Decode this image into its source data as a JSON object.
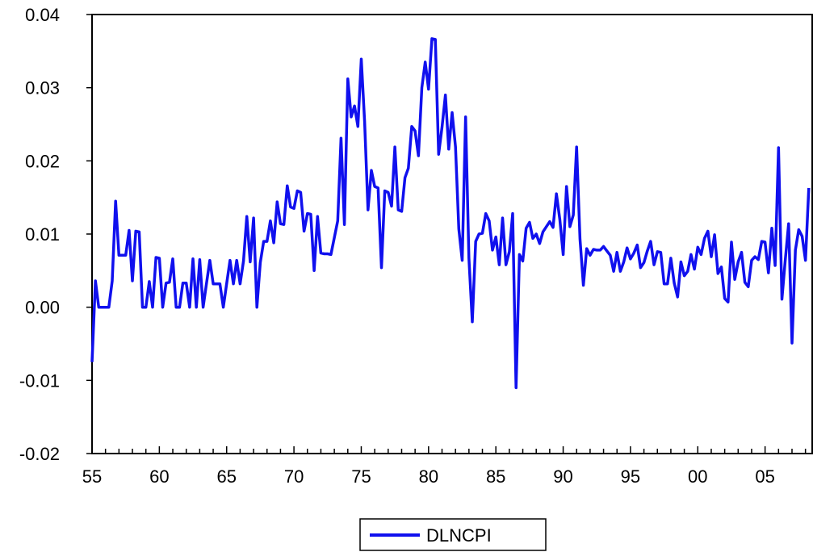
{
  "chart_data": {
    "type": "line",
    "title": "",
    "xlabel": "",
    "ylabel": "",
    "x_start": 1955,
    "x_end": 2008.5,
    "ylim": [
      -0.02,
      0.04
    ],
    "y_ticks": [
      {
        "value": 0.04,
        "label": "0.04"
      },
      {
        "value": 0.03,
        "label": "0.03"
      },
      {
        "value": 0.02,
        "label": "0.02"
      },
      {
        "value": 0.01,
        "label": "0.01"
      },
      {
        "value": 0.0,
        "label": "0.00"
      },
      {
        "value": -0.01,
        "label": "-0.01"
      },
      {
        "value": -0.02,
        "label": "-0.02"
      }
    ],
    "x_ticks": [
      {
        "value": 1955,
        "label": "55"
      },
      {
        "value": 1960,
        "label": "60"
      },
      {
        "value": 1965,
        "label": "65"
      },
      {
        "value": 1970,
        "label": "70"
      },
      {
        "value": 1975,
        "label": "75"
      },
      {
        "value": 1980,
        "label": "80"
      },
      {
        "value": 1985,
        "label": "85"
      },
      {
        "value": 1990,
        "label": "90"
      },
      {
        "value": 1995,
        "label": "95"
      },
      {
        "value": 2000,
        "label": "00"
      },
      {
        "value": 2005,
        "label": "05"
      }
    ],
    "legend": {
      "placement": "bottom-center",
      "entries": [
        "DLNCPI"
      ]
    },
    "grid": false,
    "series": [
      {
        "name": "DLNCPI",
        "color": "#1010ee",
        "points": [
          [
            1955.0,
            -0.0075
          ],
          [
            1955.25,
            0.0036
          ],
          [
            1955.5,
            0.0
          ],
          [
            1955.75,
            0.0
          ],
          [
            1956.0,
            0.0
          ],
          [
            1956.25,
            0.0
          ],
          [
            1956.5,
            0.0036
          ],
          [
            1956.75,
            0.0145
          ],
          [
            1957.0,
            0.0071
          ],
          [
            1957.25,
            0.0071
          ],
          [
            1957.5,
            0.0071
          ],
          [
            1957.75,
            0.0105
          ],
          [
            1958.0,
            0.0036
          ],
          [
            1958.25,
            0.0104
          ],
          [
            1958.5,
            0.0103
          ],
          [
            1958.75,
            0.0
          ],
          [
            1959.0,
            0.0
          ],
          [
            1959.25,
            0.0035
          ],
          [
            1959.5,
            0.0
          ],
          [
            1959.75,
            0.0068
          ],
          [
            1960.0,
            0.0067
          ],
          [
            1960.25,
            0.0
          ],
          [
            1960.5,
            0.0033
          ],
          [
            1960.75,
            0.0034
          ],
          [
            1961.0,
            0.0066
          ],
          [
            1961.25,
            0.0
          ],
          [
            1961.5,
            0.0
          ],
          [
            1961.75,
            0.0033
          ],
          [
            1962.0,
            0.0033
          ],
          [
            1962.25,
            0.0
          ],
          [
            1962.5,
            0.0066
          ],
          [
            1962.75,
            0.0
          ],
          [
            1963.0,
            0.0065
          ],
          [
            1963.25,
            0.0
          ],
          [
            1963.5,
            0.0032
          ],
          [
            1963.75,
            0.0064
          ],
          [
            1964.0,
            0.0032
          ],
          [
            1964.25,
            0.0032
          ],
          [
            1964.5,
            0.0032
          ],
          [
            1964.75,
            0.0
          ],
          [
            1965.0,
            0.0032
          ],
          [
            1965.25,
            0.0064
          ],
          [
            1965.5,
            0.0032
          ],
          [
            1965.75,
            0.0064
          ],
          [
            1966.0,
            0.0032
          ],
          [
            1966.25,
            0.0063
          ],
          [
            1966.5,
            0.0124
          ],
          [
            1966.75,
            0.0062
          ],
          [
            1967.0,
            0.0122
          ],
          [
            1967.25,
            0.0
          ],
          [
            1967.5,
            0.0061
          ],
          [
            1967.75,
            0.009
          ],
          [
            1968.0,
            0.009
          ],
          [
            1968.25,
            0.0118
          ],
          [
            1968.5,
            0.0088
          ],
          [
            1968.75,
            0.0144
          ],
          [
            1969.0,
            0.0114
          ],
          [
            1969.25,
            0.0113
          ],
          [
            1969.5,
            0.0166
          ],
          [
            1969.75,
            0.0137
          ],
          [
            1970.0,
            0.0135
          ],
          [
            1970.25,
            0.0159
          ],
          [
            1970.5,
            0.0157
          ],
          [
            1970.75,
            0.0104
          ],
          [
            1971.0,
            0.0128
          ],
          [
            1971.25,
            0.0127
          ],
          [
            1971.5,
            0.005
          ],
          [
            1971.75,
            0.0124
          ],
          [
            1972.0,
            0.0074
          ],
          [
            1972.25,
            0.0073
          ],
          [
            1972.5,
            0.0073
          ],
          [
            1972.75,
            0.0072
          ],
          [
            1973.0,
            0.0095
          ],
          [
            1973.25,
            0.0118
          ],
          [
            1973.5,
            0.0231
          ],
          [
            1973.75,
            0.0113
          ],
          [
            1974.0,
            0.0312
          ],
          [
            1974.25,
            0.026
          ],
          [
            1974.5,
            0.0275
          ],
          [
            1974.75,
            0.0247
          ],
          [
            1975.0,
            0.0339
          ],
          [
            1975.25,
            0.0254
          ],
          [
            1975.5,
            0.0133
          ],
          [
            1975.75,
            0.0187
          ],
          [
            1976.0,
            0.0165
          ],
          [
            1976.25,
            0.0163
          ],
          [
            1976.5,
            0.0054
          ],
          [
            1976.75,
            0.0159
          ],
          [
            1977.0,
            0.0157
          ],
          [
            1977.25,
            0.0138
          ],
          [
            1977.5,
            0.0219
          ],
          [
            1977.75,
            0.0133
          ],
          [
            1978.0,
            0.0131
          ],
          [
            1978.25,
            0.0177
          ],
          [
            1978.5,
            0.019
          ],
          [
            1978.75,
            0.0247
          ],
          [
            1979.0,
            0.0241
          ],
          [
            1979.25,
            0.0207
          ],
          [
            1979.5,
            0.03
          ],
          [
            1979.75,
            0.0335
          ],
          [
            1980.0,
            0.0298
          ],
          [
            1980.25,
            0.0367
          ],
          [
            1980.5,
            0.0366
          ],
          [
            1980.75,
            0.0209
          ],
          [
            1981.0,
            0.0246
          ],
          [
            1981.25,
            0.029
          ],
          [
            1981.5,
            0.0216
          ],
          [
            1981.75,
            0.0266
          ],
          [
            1982.0,
            0.0219
          ],
          [
            1982.25,
            0.0107
          ],
          [
            1982.5,
            0.0064
          ],
          [
            1982.75,
            0.026
          ],
          [
            1983.0,
            0.0067
          ],
          [
            1983.25,
            -0.002
          ],
          [
            1983.5,
            0.009
          ],
          [
            1983.75,
            0.01
          ],
          [
            1984.0,
            0.0101
          ],
          [
            1984.25,
            0.0128
          ],
          [
            1984.5,
            0.0118
          ],
          [
            1984.75,
            0.0078
          ],
          [
            1985.0,
            0.0096
          ],
          [
            1985.25,
            0.0058
          ],
          [
            1985.5,
            0.0122
          ],
          [
            1985.75,
            0.0058
          ],
          [
            1986.0,
            0.0076
          ],
          [
            1986.25,
            0.0128
          ],
          [
            1986.5,
            -0.011
          ],
          [
            1986.75,
            0.0072
          ],
          [
            1987.0,
            0.0063
          ],
          [
            1987.25,
            0.0108
          ],
          [
            1987.5,
            0.0116
          ],
          [
            1987.75,
            0.0094
          ],
          [
            1988.0,
            0.01
          ],
          [
            1988.25,
            0.0087
          ],
          [
            1988.5,
            0.0103
          ],
          [
            1988.75,
            0.011
          ],
          [
            1989.0,
            0.0117
          ],
          [
            1989.25,
            0.0109
          ],
          [
            1989.5,
            0.0155
          ],
          [
            1989.75,
            0.012
          ],
          [
            1990.0,
            0.0072
          ],
          [
            1990.25,
            0.0165
          ],
          [
            1990.5,
            0.011
          ],
          [
            1990.75,
            0.0126
          ],
          [
            1991.0,
            0.0219
          ],
          [
            1991.25,
            0.0093
          ],
          [
            1991.5,
            0.003
          ],
          [
            1991.75,
            0.008
          ],
          [
            1992.0,
            0.0071
          ],
          [
            1992.25,
            0.0079
          ],
          [
            1992.5,
            0.0078
          ],
          [
            1992.75,
            0.0078
          ],
          [
            1993.0,
            0.0083
          ],
          [
            1993.25,
            0.0077
          ],
          [
            1993.5,
            0.0071
          ],
          [
            1993.75,
            0.0049
          ],
          [
            1994.0,
            0.0075
          ],
          [
            1994.25,
            0.0049
          ],
          [
            1994.5,
            0.0062
          ],
          [
            1994.75,
            0.0081
          ],
          [
            1995.0,
            0.0066
          ],
          [
            1995.25,
            0.0074
          ],
          [
            1995.5,
            0.0085
          ],
          [
            1995.75,
            0.0054
          ],
          [
            1996.0,
            0.0061
          ],
          [
            1996.25,
            0.0077
          ],
          [
            1996.5,
            0.009
          ],
          [
            1996.75,
            0.0058
          ],
          [
            1997.0,
            0.0076
          ],
          [
            1997.25,
            0.0075
          ],
          [
            1997.5,
            0.0032
          ],
          [
            1997.75,
            0.0032
          ],
          [
            1998.0,
            0.0067
          ],
          [
            1998.25,
            0.0033
          ],
          [
            1998.5,
            0.0014
          ],
          [
            1998.75,
            0.0062
          ],
          [
            1999.0,
            0.0043
          ],
          [
            1999.25,
            0.0049
          ],
          [
            1999.5,
            0.0072
          ],
          [
            1999.75,
            0.0052
          ],
          [
            2000.0,
            0.0082
          ],
          [
            2000.25,
            0.0072
          ],
          [
            2000.5,
            0.0094
          ],
          [
            2000.75,
            0.0104
          ],
          [
            2001.0,
            0.0069
          ],
          [
            2001.25,
            0.0099
          ],
          [
            2001.5,
            0.0046
          ],
          [
            2001.75,
            0.0055
          ],
          [
            2002.0,
            0.0012
          ],
          [
            2002.25,
            0.0007
          ],
          [
            2002.5,
            0.0089
          ],
          [
            2002.75,
            0.0038
          ],
          [
            2003.0,
            0.0062
          ],
          [
            2003.25,
            0.0075
          ],
          [
            2003.5,
            0.0034
          ],
          [
            2003.75,
            0.0028
          ],
          [
            2004.0,
            0.0064
          ],
          [
            2004.25,
            0.0069
          ],
          [
            2004.5,
            0.0065
          ],
          [
            2004.75,
            0.009
          ],
          [
            2005.0,
            0.0089
          ],
          [
            2005.25,
            0.0047
          ],
          [
            2005.5,
            0.0108
          ],
          [
            2005.75,
            0.0057
          ],
          [
            2006.0,
            0.0218
          ],
          [
            2006.25,
            0.0011
          ],
          [
            2006.5,
            0.0065
          ],
          [
            2006.75,
            0.0114
          ],
          [
            2007.0,
            -0.0049
          ],
          [
            2007.25,
            0.0078
          ],
          [
            2007.5,
            0.0106
          ],
          [
            2007.75,
            0.0097
          ],
          [
            2008.0,
            0.0064
          ],
          [
            2008.25,
            0.0163
          ]
        ]
      }
    ]
  }
}
